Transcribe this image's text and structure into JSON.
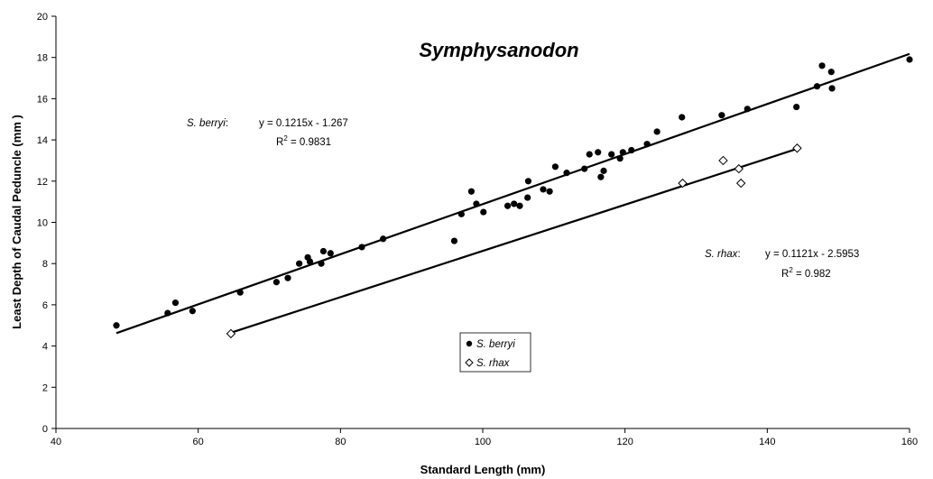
{
  "chart_data": {
    "type": "scatter",
    "title": "Symphysanodon",
    "xlabel": "Standard Length (mm)",
    "ylabel": "Least Depth of Caudal Peduncle (mm )",
    "xlim": [
      40,
      160
    ],
    "ylim": [
      0,
      20
    ],
    "xticks": [
      40,
      60,
      80,
      100,
      120,
      140,
      160
    ],
    "yticks": [
      0,
      2,
      4,
      6,
      8,
      10,
      12,
      14,
      16,
      18,
      20
    ],
    "grid": false,
    "legend_position": "bottom-center",
    "series": [
      {
        "name": "S. berryi",
        "marker": "filled-circle",
        "color": "#000000",
        "points": [
          [
            48.5,
            5.0
          ],
          [
            55.7,
            5.6
          ],
          [
            56.8,
            6.1
          ],
          [
            59.2,
            5.7
          ],
          [
            65.9,
            6.6
          ],
          [
            71.0,
            7.1
          ],
          [
            72.6,
            7.3
          ],
          [
            74.2,
            8.0
          ],
          [
            75.4,
            8.3
          ],
          [
            75.7,
            8.1
          ],
          [
            77.3,
            8.0
          ],
          [
            77.6,
            8.6
          ],
          [
            78.6,
            8.5
          ],
          [
            83.0,
            8.8
          ],
          [
            86.0,
            9.2
          ],
          [
            96.0,
            9.1
          ],
          [
            97.0,
            10.4
          ],
          [
            98.4,
            11.5
          ],
          [
            99.1,
            10.9
          ],
          [
            100.1,
            10.5
          ],
          [
            103.5,
            10.8
          ],
          [
            104.4,
            10.9
          ],
          [
            105.2,
            10.8
          ],
          [
            106.3,
            11.2
          ],
          [
            106.4,
            12.0
          ],
          [
            108.5,
            11.6
          ],
          [
            109.4,
            11.5
          ],
          [
            110.2,
            12.7
          ],
          [
            111.8,
            12.4
          ],
          [
            114.3,
            12.6
          ],
          [
            115.0,
            13.3
          ],
          [
            116.2,
            13.4
          ],
          [
            116.6,
            12.2
          ],
          [
            117.0,
            12.5
          ],
          [
            118.1,
            13.3
          ],
          [
            119.3,
            13.1
          ],
          [
            119.7,
            13.4
          ],
          [
            120.9,
            13.5
          ],
          [
            123.1,
            13.8
          ],
          [
            124.5,
            14.4
          ],
          [
            128.0,
            15.1
          ],
          [
            133.6,
            15.2
          ],
          [
            137.2,
            15.5
          ],
          [
            144.1,
            15.6
          ],
          [
            147.0,
            16.6
          ],
          [
            147.7,
            17.6
          ],
          [
            149.0,
            17.3
          ],
          [
            149.1,
            16.5
          ],
          [
            160.0,
            17.9
          ]
        ],
        "trendline": {
          "slope": 0.1215,
          "intercept": -1.267,
          "x_range": [
            48.5,
            160.0
          ]
        }
      },
      {
        "name": "S. rhax",
        "marker": "open-diamond",
        "color": "#000000",
        "points": [
          [
            64.6,
            4.6
          ],
          [
            128.1,
            11.9
          ],
          [
            133.8,
            13.0
          ],
          [
            136.0,
            12.6
          ],
          [
            136.3,
            11.9
          ],
          [
            144.2,
            13.6
          ]
        ],
        "trendline": {
          "slope": 0.1121,
          "intercept": -2.5953,
          "x_range": [
            64.6,
            144.2
          ]
        }
      }
    ],
    "annotations": {
      "berryi": {
        "species": "S. berryi",
        "colon": ":",
        "equation": "y = 0.1215x - 1.267",
        "r2_prefix": "R",
        "r2_sup": "2",
        "r2_value": " = 0.9831"
      },
      "rhax": {
        "species": "S. rhax",
        "colon": ":",
        "equation": "y = 0.1121x - 2.5953",
        "r2_prefix": "R",
        "r2_sup": "2",
        "r2_value": " = 0.982"
      }
    }
  }
}
